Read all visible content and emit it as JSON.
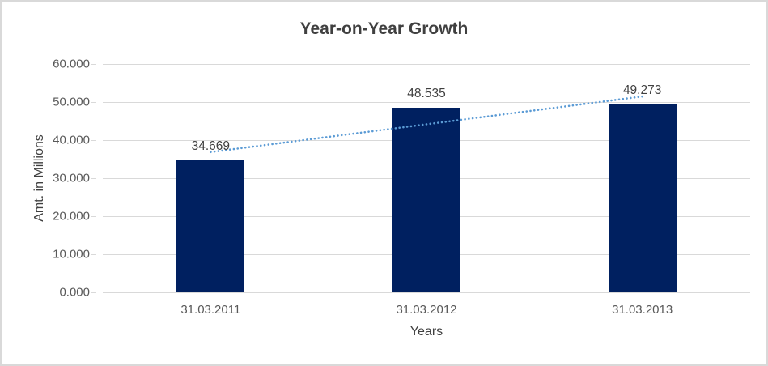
{
  "page": {
    "background": "#ffffff",
    "border_color": "#d9d9d9"
  },
  "chart_data": {
    "type": "bar",
    "title": "Year-on-Year Growth",
    "categories": [
      "31.03.2011",
      "31.03.2012",
      "31.03.2013"
    ],
    "values": [
      34.669,
      48.535,
      49.273
    ],
    "data_labels": [
      "34.669",
      "48.535",
      "49.273"
    ],
    "xlabel": "Years",
    "ylabel": "Amt. in Millions",
    "ylim": [
      0,
      60
    ],
    "yticks": [
      0,
      10,
      20,
      30,
      40,
      50,
      60
    ],
    "ytick_labels": [
      "0.000",
      "10.000",
      "20.000",
      "30.000",
      "40.000",
      "50.000",
      "60.000"
    ],
    "grid": true,
    "legend": "none",
    "bar_color": "#002060",
    "grid_color": "#d9d9d9",
    "trendline": {
      "type": "linear",
      "style": "dotted",
      "color": "#5b9bd5"
    },
    "text_colors": {
      "title": "#404040",
      "ticks": "#595959",
      "data_labels": "#404040",
      "axis_titles": "#404040"
    }
  }
}
